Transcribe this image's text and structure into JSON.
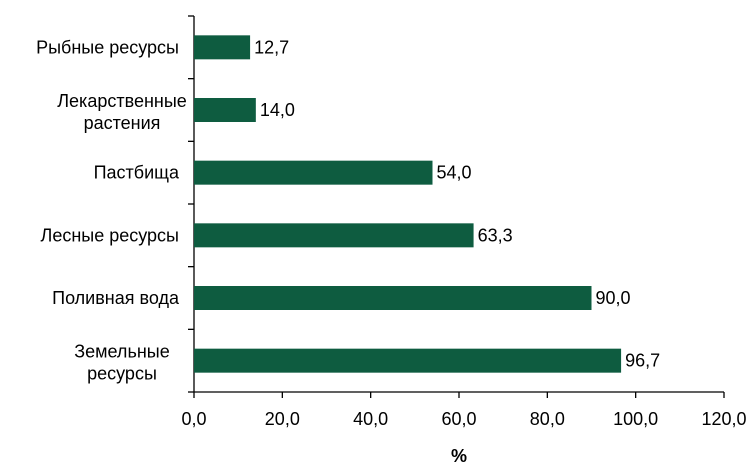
{
  "chart_data": {
    "type": "bar",
    "orientation": "horizontal",
    "title": "",
    "xlabel": "%",
    "ylabel": "",
    "categories": [
      "Рыбные ресурсы",
      "Лекарственные растения",
      "Пастбища",
      "Лесные ресурсы",
      "Поливная вода",
      "Земельные ресурсы"
    ],
    "values": [
      12.7,
      14.0,
      54.0,
      63.3,
      90.0,
      96.7
    ],
    "value_labels": [
      "12,7",
      "14,0",
      "54,0",
      "63,3",
      "90,0",
      "96,7"
    ],
    "xlim": [
      0,
      120
    ],
    "xticks": [
      "0,0",
      "20,0",
      "40,0",
      "60,0",
      "80,0",
      "100,0",
      "120,0"
    ],
    "grid": false,
    "bar_color": "#0e5c40"
  }
}
